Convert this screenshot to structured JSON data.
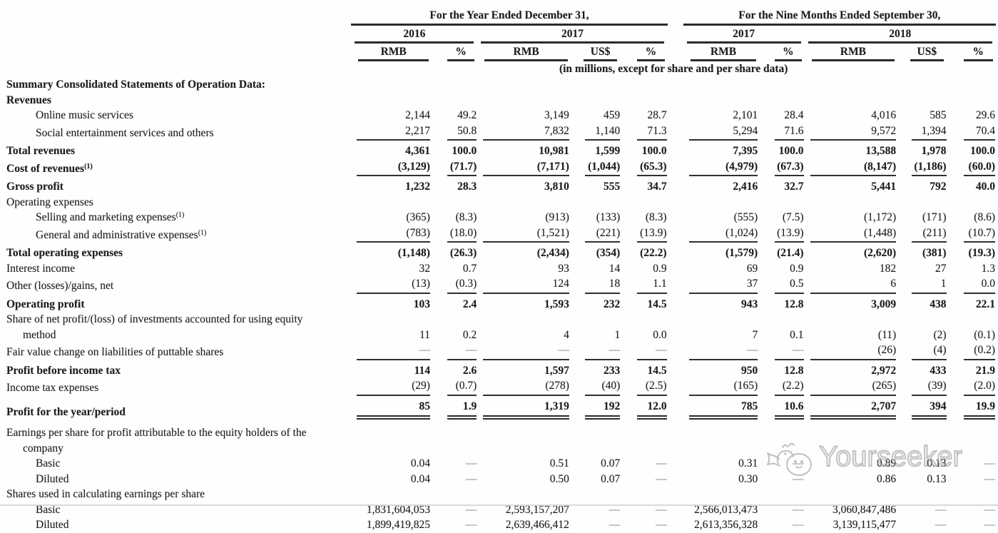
{
  "header": {
    "group1": {
      "title": "For the Year Ended December 31,",
      "years": [
        {
          "label": "2016",
          "cols": [
            "RMB",
            "%"
          ]
        },
        {
          "label": "2017",
          "cols": [
            "RMB",
            "US$",
            "%"
          ]
        }
      ]
    },
    "group2": {
      "title": "For the Nine Months Ended September 30,",
      "years": [
        {
          "label": "2017",
          "cols": [
            "RMB",
            "%"
          ]
        },
        {
          "label": "2018",
          "cols": [
            "RMB",
            "US$",
            "%"
          ]
        }
      ]
    },
    "units_note": "(in millions, except for share and per share data)"
  },
  "table": {
    "rows": [
      {
        "label": "Summary Consolidated Statements of Operation Data:",
        "bold": true
      },
      {
        "label": "Revenues",
        "bold": true
      },
      {
        "label": "Online music services",
        "indent": 1,
        "values": [
          "2,144",
          "49.2",
          "3,149",
          "459",
          "28.7",
          "2,101",
          "28.4",
          "4,016",
          "585",
          "29.6"
        ]
      },
      {
        "label": "Social entertainment services and others",
        "indent": 1,
        "rule": "single",
        "values": [
          "2,217",
          "50.8",
          "7,832",
          "1,140",
          "71.3",
          "5,294",
          "71.6",
          "9,572",
          "1,394",
          "70.4"
        ]
      },
      {
        "label": "Total revenues",
        "bold": true,
        "values_bold": true,
        "total": true,
        "values": [
          "4,361",
          "100.0",
          "10,981",
          "1,599",
          "100.0",
          "7,395",
          "100.0",
          "13,588",
          "1,978",
          "100.0"
        ]
      },
      {
        "label": "Cost of revenues",
        "sup": "(1)",
        "bold": true,
        "values_bold": true,
        "rule": "single",
        "values": [
          "(3,129)",
          "(71.7)",
          "(7,171)",
          "(1,044)",
          "(65.3)",
          "(4,979)",
          "(67.3)",
          "(8,147)",
          "(1,186)",
          "(60.0)"
        ]
      },
      {
        "label": "Gross profit",
        "bold": true,
        "values_bold": true,
        "total": true,
        "values": [
          "1,232",
          "28.3",
          "3,810",
          "555",
          "34.7",
          "2,416",
          "32.7",
          "5,441",
          "792",
          "40.0"
        ]
      },
      {
        "label": "Operating expenses"
      },
      {
        "label": "Selling and marketing expenses",
        "sup": "(1)",
        "indent": 1,
        "values": [
          "(365)",
          "(8.3)",
          "(913)",
          "(133)",
          "(8.3)",
          "(555)",
          "(7.5)",
          "(1,172)",
          "(171)",
          "(8.6)"
        ]
      },
      {
        "label": "General and administrative expenses",
        "sup": "(1)",
        "indent": 1,
        "rule": "single",
        "values": [
          "(783)",
          "(18.0)",
          "(1,521)",
          "(221)",
          "(13.9)",
          "(1,024)",
          "(13.9)",
          "(1,448)",
          "(211)",
          "(10.7)"
        ]
      },
      {
        "label": "Total operating expenses",
        "bold": true,
        "values_bold": true,
        "total": true,
        "values": [
          "(1,148)",
          "(26.3)",
          "(2,434)",
          "(354)",
          "(22.2)",
          "(1,579)",
          "(21.4)",
          "(2,620)",
          "(381)",
          "(19.3)"
        ]
      },
      {
        "label": "Interest income",
        "values": [
          "32",
          "0.7",
          "93",
          "14",
          "0.9",
          "69",
          "0.9",
          "182",
          "27",
          "1.3"
        ]
      },
      {
        "label": "Other (losses)/gains, net",
        "rule": "single",
        "values": [
          "(13)",
          "(0.3)",
          "124",
          "18",
          "1.1",
          "37",
          "0.5",
          "6",
          "1",
          "0.0"
        ]
      },
      {
        "label": "Operating profit",
        "bold": true,
        "values_bold": true,
        "total": true,
        "values": [
          "103",
          "2.4",
          "1,593",
          "232",
          "14.5",
          "943",
          "12.8",
          "3,009",
          "438",
          "22.1"
        ]
      },
      {
        "label": "Share of net profit/(loss) of investments accounted for using equity",
        "label2": "method",
        "values_on_line2": true,
        "values": [
          "11",
          "0.2",
          "4",
          "1",
          "0.0",
          "7",
          "0.1",
          "(11)",
          "(2)",
          "(0.1)"
        ]
      },
      {
        "label": "Fair value change on liabilities of puttable shares",
        "rule": "single",
        "values": [
          "—",
          "—",
          "—",
          "—",
          "—",
          "—",
          "—",
          "(26)",
          "(4)",
          "(0.2)"
        ]
      },
      {
        "label": "Profit before income tax",
        "bold": true,
        "values_bold": true,
        "total": true,
        "values": [
          "114",
          "2.6",
          "1,597",
          "233",
          "14.5",
          "950",
          "12.8",
          "2,972",
          "433",
          "21.9"
        ]
      },
      {
        "label": "Income tax expenses",
        "rule": "single",
        "values": [
          "(29)",
          "(0.7)",
          "(278)",
          "(40)",
          "(2.5)",
          "(165)",
          "(2.2)",
          "(265)",
          "(39)",
          "(2.0)"
        ]
      },
      {
        "label": "Profit for the year/period",
        "bold": true,
        "values_bold": true,
        "total": true,
        "rule": "double",
        "values": [
          "85",
          "1.9",
          "1,319",
          "192",
          "12.0",
          "785",
          "10.6",
          "2,707",
          "394",
          "19.9"
        ]
      },
      {
        "label": "Earnings per share for profit attributable to the equity holders of the",
        "label2": "company",
        "space_before": true
      },
      {
        "label": "Basic",
        "indent": 1,
        "values": [
          "0.04",
          "—",
          "0.51",
          "0.07",
          "—",
          "0.31",
          "—",
          "0.89",
          "0.13",
          "—"
        ]
      },
      {
        "label": "Diluted",
        "indent": 1,
        "values": [
          "0.04",
          "—",
          "0.50",
          "0.07",
          "—",
          "0.30",
          "—",
          "0.86",
          "0.13",
          "—"
        ]
      },
      {
        "label": "Shares used in calculating earnings per share"
      },
      {
        "label": "Basic",
        "indent": 1,
        "values": [
          "1,831,604,053",
          "—",
          "2,593,157,207",
          "—",
          "—",
          "2,566,013,473",
          "—",
          "3,060,847,486",
          "—",
          "—"
        ]
      },
      {
        "label": "Diluted",
        "indent": 1,
        "values": [
          "1,899,419,825",
          "—",
          "2,639,466,412",
          "—",
          "—",
          "2,613,356,328",
          "—",
          "3,139,115,477",
          "—",
          "—"
        ]
      }
    ]
  },
  "watermark": {
    "text": "Yourseeker",
    "icon": "whale-icon",
    "color": "#a8a8a8"
  }
}
